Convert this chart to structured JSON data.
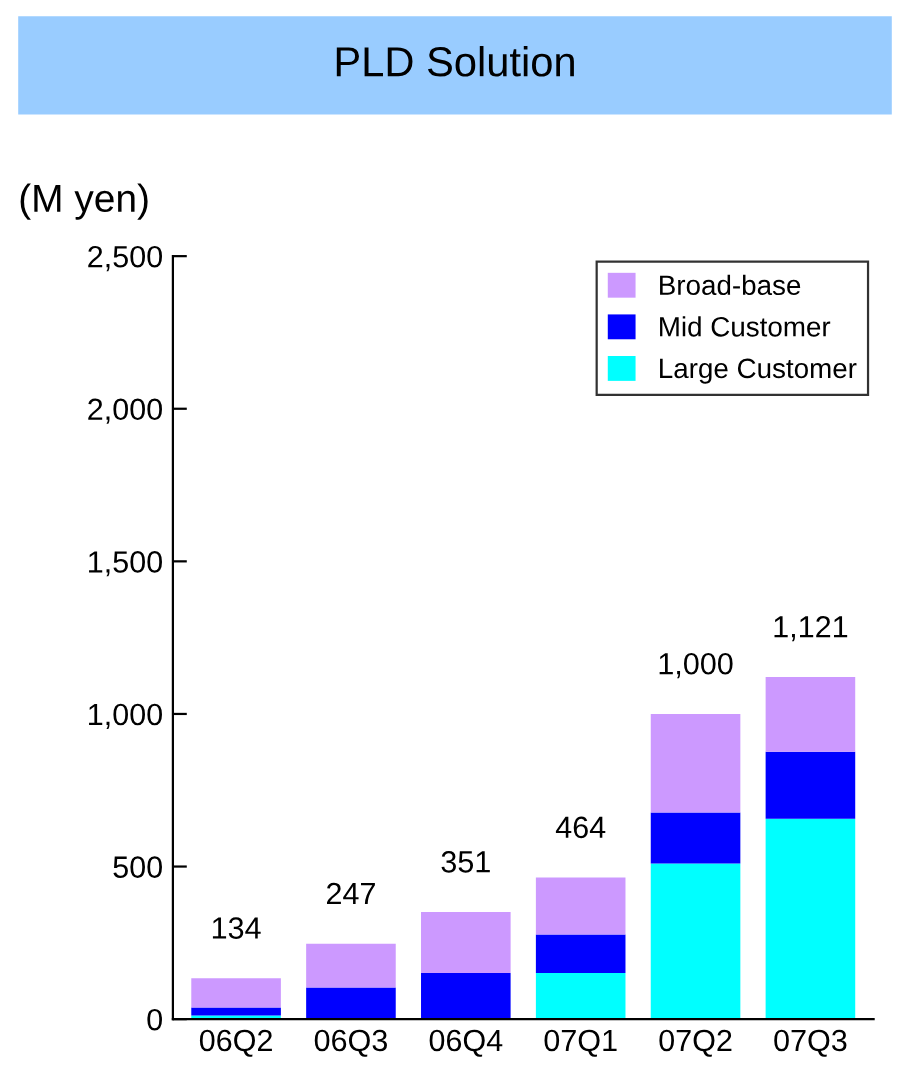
{
  "chart_data": {
    "type": "bar",
    "title": "PLD Solution",
    "ylabel": "(M yen)",
    "stacked": true,
    "categories": [
      "06Q2",
      "06Q3",
      "06Q4",
      "07Q1",
      "07Q2",
      "07Q3"
    ],
    "series": [
      {
        "name": "Large Customer",
        "color": "#00ffff",
        "values": [
          12,
          0,
          0,
          151,
          510,
          657
        ]
      },
      {
        "name": "Mid Customer",
        "color": "#0000ff",
        "values": [
          26,
          104,
          151,
          126,
          167,
          219
        ]
      },
      {
        "name": "Broad-base",
        "color": "#cc99ff",
        "values": [
          96,
          143,
          200,
          187,
          323,
          245
        ]
      }
    ],
    "totals": [
      "134",
      "247",
      "351",
      "464",
      "1,000",
      "1,121"
    ],
    "ylim": [
      0,
      2500
    ],
    "yticks": [
      0,
      500,
      {
        "value": 1000,
        "label": "1,000"
      },
      {
        "value": 1500,
        "label": "1,500"
      },
      {
        "value": 2000,
        "label": "2,000"
      },
      {
        "value": 2500,
        "label": "2,500"
      }
    ],
    "legend": "top right",
    "grid": false
  }
}
